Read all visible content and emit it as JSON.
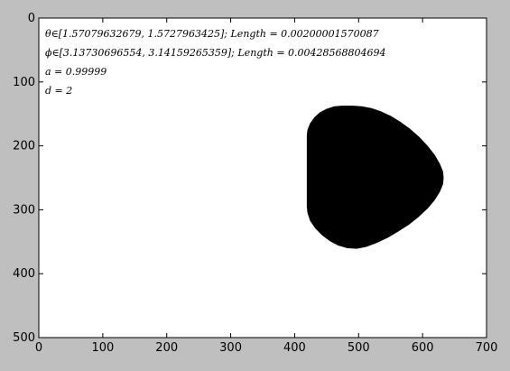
{
  "chart_data": {
    "type": "heatmap",
    "title": "",
    "xlabel": "",
    "ylabel": "",
    "xlim": [
      0,
      700
    ],
    "ylim": [
      500,
      0
    ],
    "x_ticks": [
      0,
      100,
      200,
      300,
      400,
      500,
      600,
      700
    ],
    "y_ticks": [
      0,
      100,
      200,
      300,
      400,
      500
    ],
    "grid": false,
    "background_color": "#ffffff",
    "fill_color": "#000000",
    "annotations": [
      "θ∈[1.57079632679, 1.5727963425]; Length = 0.00200001570087",
      "ϕ∈[3.13730696554, 3.14159265359]; Length = 0.00428568804694",
      "a = 0.99999",
      "d = 2"
    ],
    "shape_outline": [
      [
        419,
        183
      ],
      [
        420,
        175
      ],
      [
        424,
        165
      ],
      [
        431,
        155
      ],
      [
        440,
        147
      ],
      [
        450,
        142
      ],
      [
        462,
        138
      ],
      [
        475,
        137
      ],
      [
        490,
        137
      ],
      [
        505,
        138
      ],
      [
        520,
        141
      ],
      [
        535,
        146
      ],
      [
        550,
        153
      ],
      [
        565,
        162
      ],
      [
        580,
        173
      ],
      [
        595,
        186
      ],
      [
        608,
        200
      ],
      [
        619,
        214
      ],
      [
        627,
        228
      ],
      [
        632,
        240
      ],
      [
        633,
        250
      ],
      [
        632,
        260
      ],
      [
        627,
        272
      ],
      [
        619,
        285
      ],
      [
        608,
        298
      ],
      [
        594,
        311
      ],
      [
        579,
        323
      ],
      [
        562,
        334
      ],
      [
        545,
        344
      ],
      [
        528,
        352
      ],
      [
        512,
        358
      ],
      [
        497,
        361
      ],
      [
        482,
        360
      ],
      [
        468,
        356
      ],
      [
        455,
        349
      ],
      [
        443,
        340
      ],
      [
        432,
        329
      ],
      [
        424,
        317
      ],
      [
        420,
        305
      ],
      [
        419,
        295
      ]
    ]
  }
}
